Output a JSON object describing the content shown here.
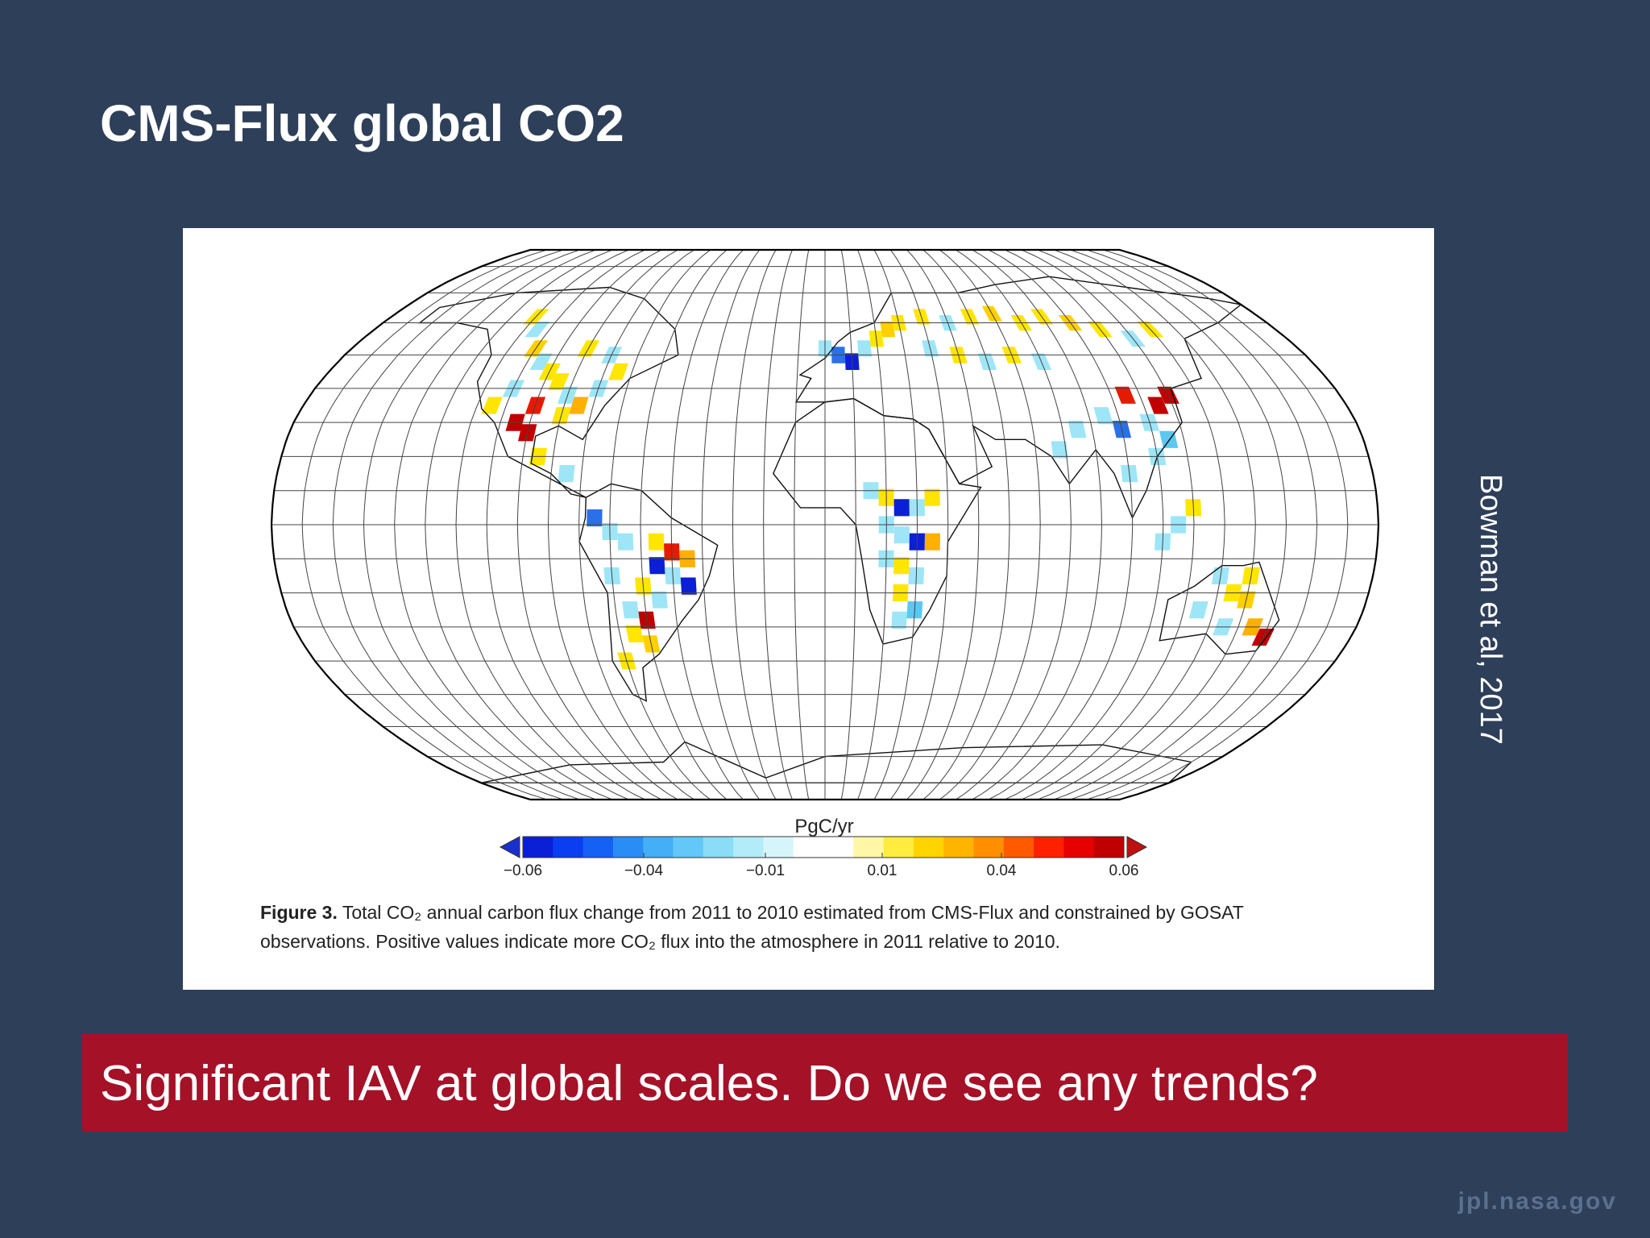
{
  "slide": {
    "title": "CMS-Flux global CO2",
    "figure": {
      "colorbar_label": "PgC/yr",
      "colorbar_ticks": [
        "−0.06",
        "−0.04",
        "−0.01",
        "0.01",
        "0.04",
        "0.06"
      ],
      "caption_label": "Figure 3.",
      "caption_line1": " Total CO₂ annual carbon flux change from 2011 to 2010 estimated from CMS-Flux and constrained by GOSAT",
      "caption_line2": "observations. Positive values indicate more CO₂ flux into the atmosphere in 2011 relative to 2010."
    },
    "citation": "Bowman et al, 2017",
    "banner": "Significant IAV at global scales.  Do we see any trends?",
    "footer": "jpl.nasa.gov"
  }
}
